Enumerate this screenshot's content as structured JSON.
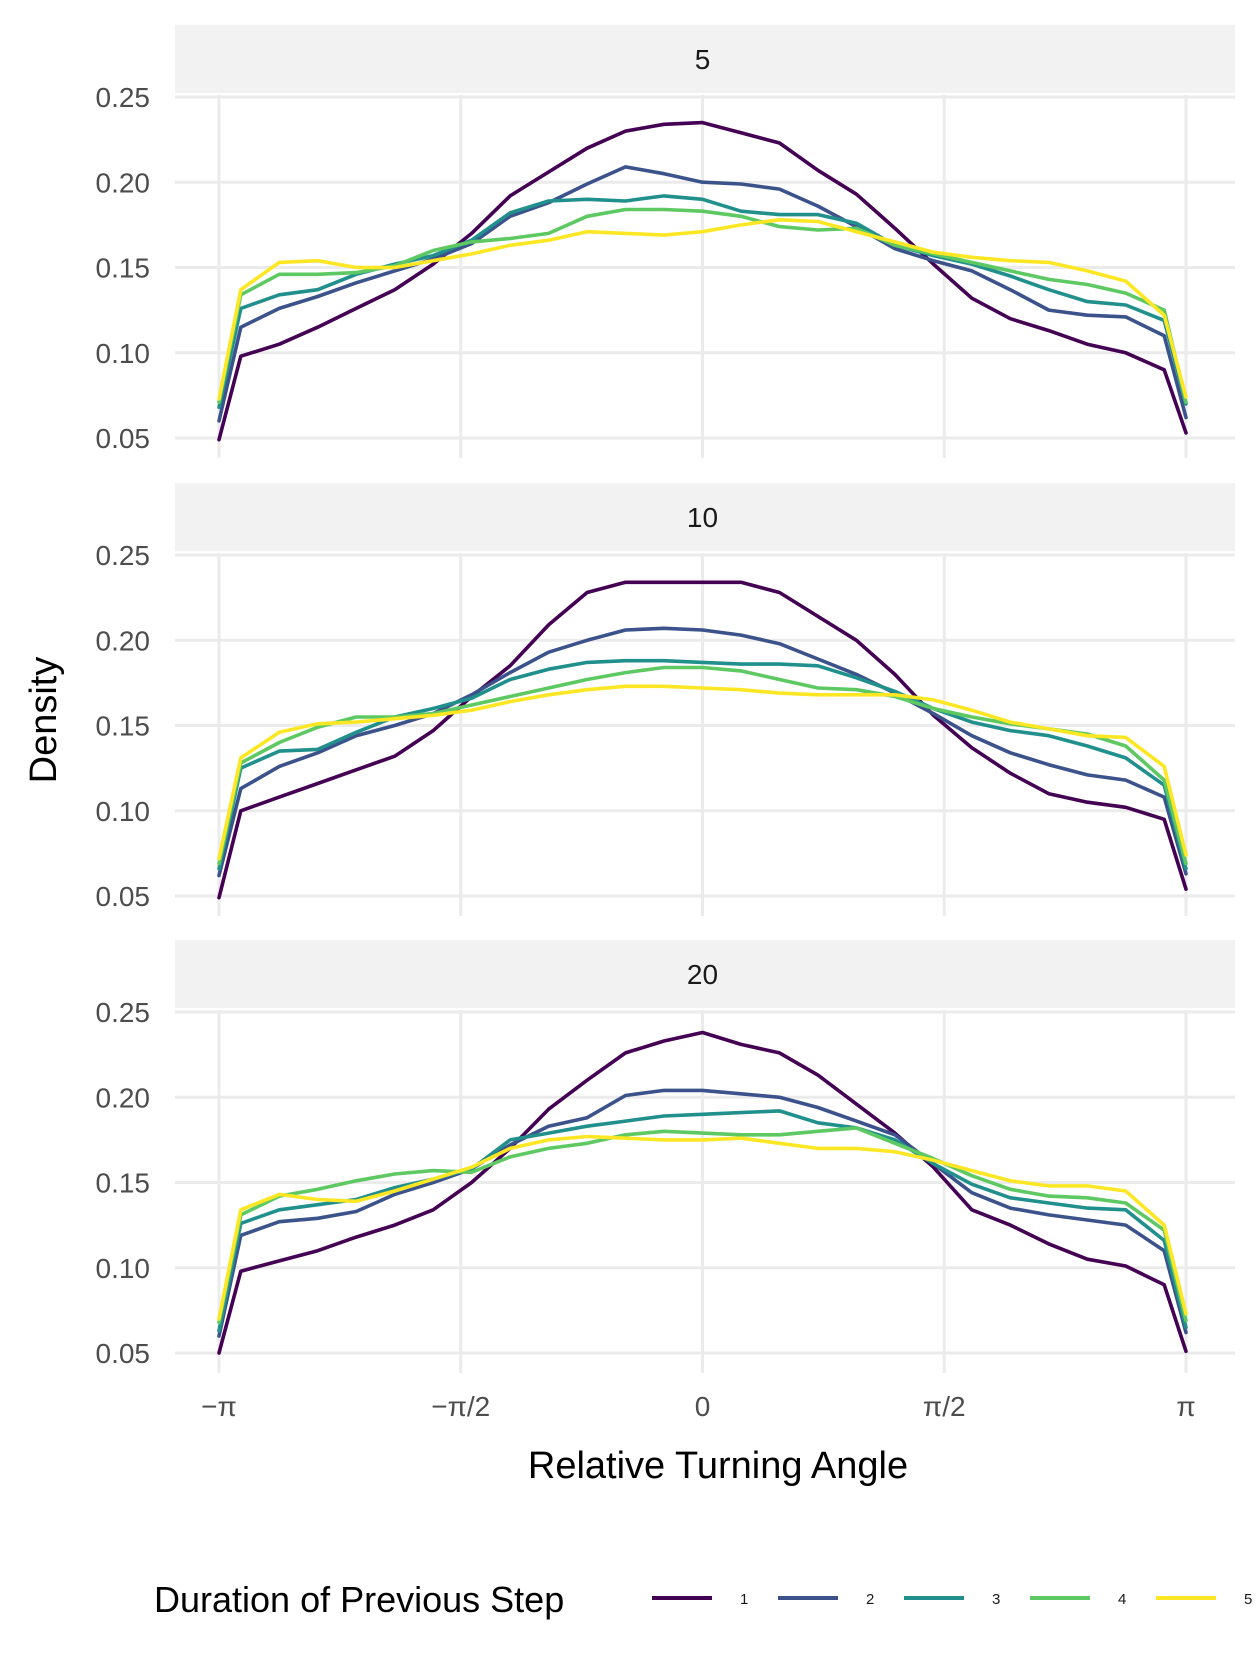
{
  "chart_data": {
    "type": "line",
    "xlabel": "Relative Turning Angle",
    "ylabel": "Density",
    "x_range": [
      -3.1416,
      3.1416
    ],
    "ylim": [
      0.05,
      0.25
    ],
    "x_ticks": [
      {
        "value": -3.1416,
        "label": "−π"
      },
      {
        "value": -1.5708,
        "label": "−π/2"
      },
      {
        "value": 0,
        "label": "0"
      },
      {
        "value": 1.5708,
        "label": "π/2"
      },
      {
        "value": 3.1416,
        "label": "π"
      }
    ],
    "y_ticks": [
      "0.05",
      "0.10",
      "0.15",
      "0.20",
      "0.25"
    ],
    "grid": true,
    "legend": {
      "title": "Duration of Previous Step",
      "position": "bottom",
      "entries": [
        "1",
        "2",
        "3",
        "4",
        "5"
      ],
      "colors": [
        "#440154",
        "#3b528b",
        "#21908c",
        "#5ec962",
        "#fde725"
      ]
    },
    "x": [
      -3.1416,
      -3.0,
      -2.75,
      -2.5,
      -2.25,
      -2.0,
      -1.75,
      -1.5,
      -1.25,
      -1.0,
      -0.75,
      -0.5,
      -0.25,
      0.0,
      0.25,
      0.5,
      0.75,
      1.0,
      1.25,
      1.5,
      1.75,
      2.0,
      2.25,
      2.5,
      2.75,
      3.0,
      3.1416
    ],
    "panels": [
      {
        "facet": "5",
        "series": [
          {
            "name": "1",
            "values": [
              0.049,
              0.098,
              0.105,
              0.115,
              0.126,
              0.137,
              0.152,
              0.17,
              0.192,
              0.206,
              0.22,
              0.23,
              0.234,
              0.235,
              0.229,
              0.223,
              0.207,
              0.193,
              0.173,
              0.152,
              0.132,
              0.12,
              0.113,
              0.105,
              0.1,
              0.09,
              0.053
            ]
          },
          {
            "name": "2",
            "values": [
              0.06,
              0.115,
              0.126,
              0.133,
              0.141,
              0.148,
              0.155,
              0.164,
              0.18,
              0.188,
              0.199,
              0.209,
              0.205,
              0.2,
              0.199,
              0.196,
              0.186,
              0.174,
              0.161,
              0.154,
              0.148,
              0.137,
              0.125,
              0.122,
              0.121,
              0.11,
              0.062
            ]
          },
          {
            "name": "3",
            "values": [
              0.068,
              0.126,
              0.134,
              0.137,
              0.146,
              0.152,
              0.157,
              0.166,
              0.182,
              0.189,
              0.19,
              0.189,
              0.192,
              0.19,
              0.183,
              0.181,
              0.181,
              0.176,
              0.163,
              0.157,
              0.152,
              0.145,
              0.137,
              0.13,
              0.128,
              0.119,
              0.07
            ]
          },
          {
            "name": "4",
            "values": [
              0.071,
              0.134,
              0.146,
              0.146,
              0.147,
              0.151,
              0.16,
              0.165,
              0.167,
              0.17,
              0.18,
              0.184,
              0.184,
              0.183,
              0.18,
              0.174,
              0.172,
              0.173,
              0.163,
              0.158,
              0.153,
              0.148,
              0.143,
              0.14,
              0.135,
              0.125,
              0.071
            ]
          },
          {
            "name": "5",
            "values": [
              0.073,
              0.137,
              0.153,
              0.154,
              0.15,
              0.15,
              0.154,
              0.158,
              0.163,
              0.166,
              0.171,
              0.17,
              0.169,
              0.171,
              0.175,
              0.178,
              0.177,
              0.171,
              0.165,
              0.159,
              0.156,
              0.154,
              0.153,
              0.148,
              0.142,
              0.122,
              0.074
            ]
          }
        ]
      },
      {
        "facet": "10",
        "series": [
          {
            "name": "1",
            "values": [
              0.049,
              0.1,
              0.108,
              0.116,
              0.124,
              0.132,
              0.147,
              0.167,
              0.185,
              0.209,
              0.228,
              0.234,
              0.234,
              0.234,
              0.234,
              0.228,
              0.214,
              0.2,
              0.18,
              0.156,
              0.137,
              0.122,
              0.11,
              0.105,
              0.102,
              0.095,
              0.054
            ]
          },
          {
            "name": "2",
            "values": [
              0.062,
              0.113,
              0.126,
              0.134,
              0.144,
              0.15,
              0.157,
              0.168,
              0.181,
              0.193,
              0.2,
              0.206,
              0.207,
              0.206,
              0.203,
              0.198,
              0.189,
              0.18,
              0.169,
              0.157,
              0.144,
              0.134,
              0.127,
              0.121,
              0.118,
              0.108,
              0.063
            ]
          },
          {
            "name": "3",
            "values": [
              0.066,
              0.125,
              0.135,
              0.136,
              0.146,
              0.155,
              0.16,
              0.166,
              0.177,
              0.183,
              0.187,
              0.188,
              0.188,
              0.187,
              0.186,
              0.186,
              0.185,
              0.178,
              0.17,
              0.16,
              0.152,
              0.147,
              0.144,
              0.138,
              0.131,
              0.115,
              0.066
            ]
          },
          {
            "name": "4",
            "values": [
              0.069,
              0.128,
              0.14,
              0.149,
              0.155,
              0.155,
              0.157,
              0.162,
              0.167,
              0.172,
              0.177,
              0.181,
              0.184,
              0.184,
              0.182,
              0.177,
              0.172,
              0.171,
              0.167,
              0.16,
              0.155,
              0.151,
              0.148,
              0.145,
              0.138,
              0.118,
              0.069
            ]
          },
          {
            "name": "5",
            "values": [
              0.072,
              0.131,
              0.146,
              0.151,
              0.152,
              0.154,
              0.156,
              0.159,
              0.164,
              0.168,
              0.171,
              0.173,
              0.173,
              0.172,
              0.171,
              0.169,
              0.168,
              0.168,
              0.168,
              0.165,
              0.159,
              0.152,
              0.148,
              0.144,
              0.143,
              0.126,
              0.074
            ]
          }
        ]
      },
      {
        "facet": "20",
        "series": [
          {
            "name": "1",
            "values": [
              0.05,
              0.098,
              0.104,
              0.11,
              0.118,
              0.125,
              0.134,
              0.15,
              0.17,
              0.193,
              0.21,
              0.226,
              0.233,
              0.238,
              0.231,
              0.226,
              0.213,
              0.196,
              0.179,
              0.159,
              0.134,
              0.125,
              0.114,
              0.105,
              0.101,
              0.09,
              0.051
            ]
          },
          {
            "name": "2",
            "values": [
              0.06,
              0.119,
              0.127,
              0.129,
              0.133,
              0.143,
              0.15,
              0.158,
              0.172,
              0.183,
              0.188,
              0.201,
              0.204,
              0.204,
              0.202,
              0.2,
              0.194,
              0.186,
              0.178,
              0.161,
              0.144,
              0.135,
              0.131,
              0.128,
              0.125,
              0.11,
              0.062
            ]
          },
          {
            "name": "3",
            "values": [
              0.063,
              0.126,
              0.134,
              0.137,
              0.14,
              0.147,
              0.152,
              0.158,
              0.175,
              0.179,
              0.183,
              0.186,
              0.189,
              0.19,
              0.191,
              0.192,
              0.185,
              0.182,
              0.175,
              0.161,
              0.149,
              0.141,
              0.138,
              0.135,
              0.134,
              0.116,
              0.065
            ]
          },
          {
            "name": "4",
            "values": [
              0.068,
              0.131,
              0.142,
              0.146,
              0.151,
              0.155,
              0.157,
              0.156,
              0.165,
              0.17,
              0.173,
              0.178,
              0.18,
              0.179,
              0.178,
              0.178,
              0.18,
              0.182,
              0.173,
              0.164,
              0.154,
              0.146,
              0.142,
              0.141,
              0.138,
              0.122,
              0.069
            ]
          },
          {
            "name": "5",
            "values": [
              0.07,
              0.134,
              0.143,
              0.14,
              0.139,
              0.145,
              0.152,
              0.159,
              0.17,
              0.175,
              0.177,
              0.176,
              0.175,
              0.175,
              0.176,
              0.173,
              0.17,
              0.17,
              0.168,
              0.163,
              0.157,
              0.151,
              0.148,
              0.148,
              0.145,
              0.125,
              0.073
            ]
          }
        ]
      }
    ]
  }
}
